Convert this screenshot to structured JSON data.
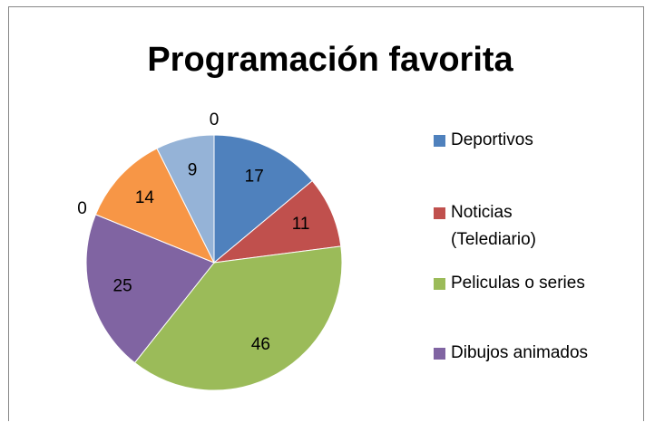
{
  "chart_data": {
    "type": "pie",
    "title": "Programación favorita",
    "categories": [
      "Deportivos",
      "Noticias (Telediario)",
      "Peliculas o series",
      "Dibujos animados",
      null,
      null,
      null,
      null
    ],
    "values": [
      17,
      11,
      46,
      25,
      0,
      14,
      9,
      0
    ],
    "colors": [
      "#4f81bd",
      "#c0504d",
      "#9bbb59",
      "#8064a2",
      "#4bacc6",
      "#f79646",
      "#95b3d7",
      "#d99694"
    ],
    "legend": "right"
  }
}
